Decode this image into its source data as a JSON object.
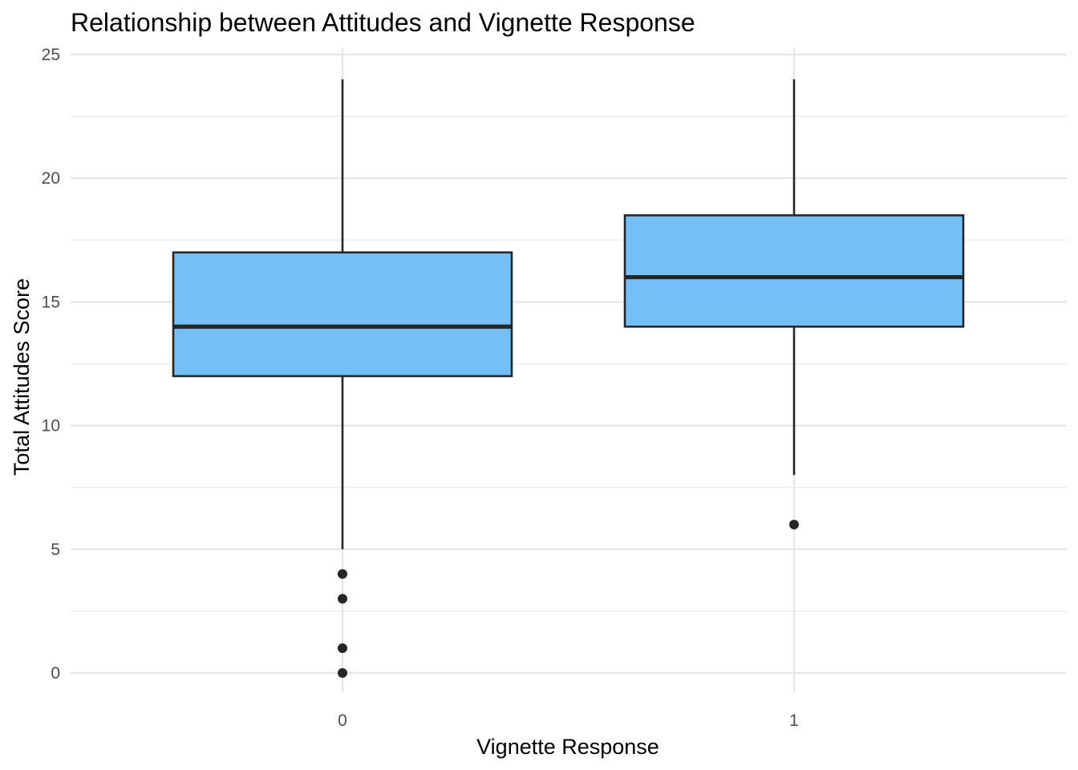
{
  "chart_data": {
    "type": "boxplot",
    "title": "Relationship between Attitudes and Vignette Response",
    "xlabel": "Vignette Response",
    "ylabel": "Total Attitudes Score",
    "categories": [
      "0",
      "1"
    ],
    "ylim": [
      -1,
      25.5
    ],
    "yticks": [
      0,
      5,
      10,
      15,
      20,
      25
    ],
    "y_minor_ticks": [
      2.5,
      7.5,
      12.5,
      17.5,
      22.5
    ],
    "grid": true,
    "boxes": [
      {
        "category": "0",
        "whisker_low": 5,
        "q1": 12,
        "median": 14,
        "q3": 17,
        "whisker_high": 24,
        "outliers": [
          4,
          3,
          1,
          0
        ]
      },
      {
        "category": "1",
        "whisker_low": 8,
        "q1": 14,
        "median": 16,
        "q3": 18.5,
        "whisker_high": 24,
        "outliers": [
          6
        ]
      }
    ],
    "colors": {
      "box_fill": "#75bff8",
      "box_stroke": "#262626",
      "grid": "#e6e6e6"
    }
  }
}
